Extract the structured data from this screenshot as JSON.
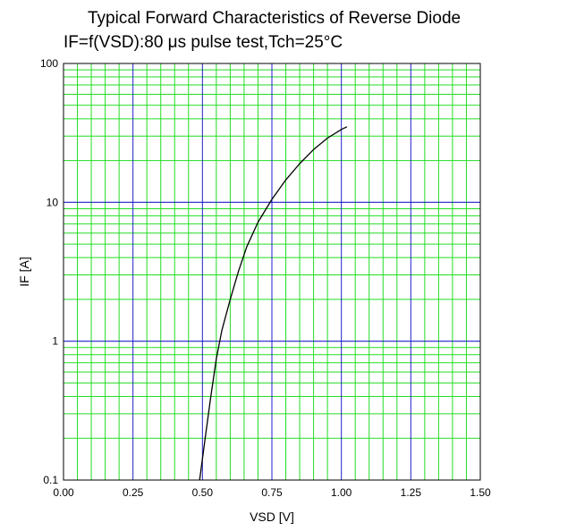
{
  "chart_data": {
    "type": "line",
    "title": "Typical Forward Characteristics of Reverse Diode",
    "subtitle": "IF=f(VSD):80 μs pulse test,Tch=25°C",
    "xlabel": "VSD [V]",
    "ylabel": "IF [A]",
    "xlim": [
      0,
      1.5
    ],
    "ylim": [
      0.1,
      100
    ],
    "yscale": "log",
    "grid": true,
    "x_ticks": [
      "0.00",
      "0.25",
      "0.50",
      "0.75",
      "1.00",
      "1.25",
      "1.50"
    ],
    "y_ticks": [
      "0.1",
      "1",
      "10",
      "100"
    ],
    "series": [
      {
        "x": [
          0.49,
          0.51,
          0.53,
          0.55,
          0.57,
          0.6,
          0.63,
          0.66,
          0.7,
          0.75,
          0.8,
          0.85,
          0.9,
          0.95,
          1.0,
          1.02
        ],
        "y": [
          0.1,
          0.2,
          0.4,
          0.75,
          1.2,
          2.0,
          3.2,
          4.8,
          7.2,
          10.5,
          14.5,
          19.0,
          24.0,
          29.0,
          33.5,
          35.0
        ]
      }
    ],
    "colors": {
      "major_grid": "#2020c8",
      "minor_grid": "#22dd22",
      "curve": "#000000",
      "frame": "#000000"
    }
  }
}
